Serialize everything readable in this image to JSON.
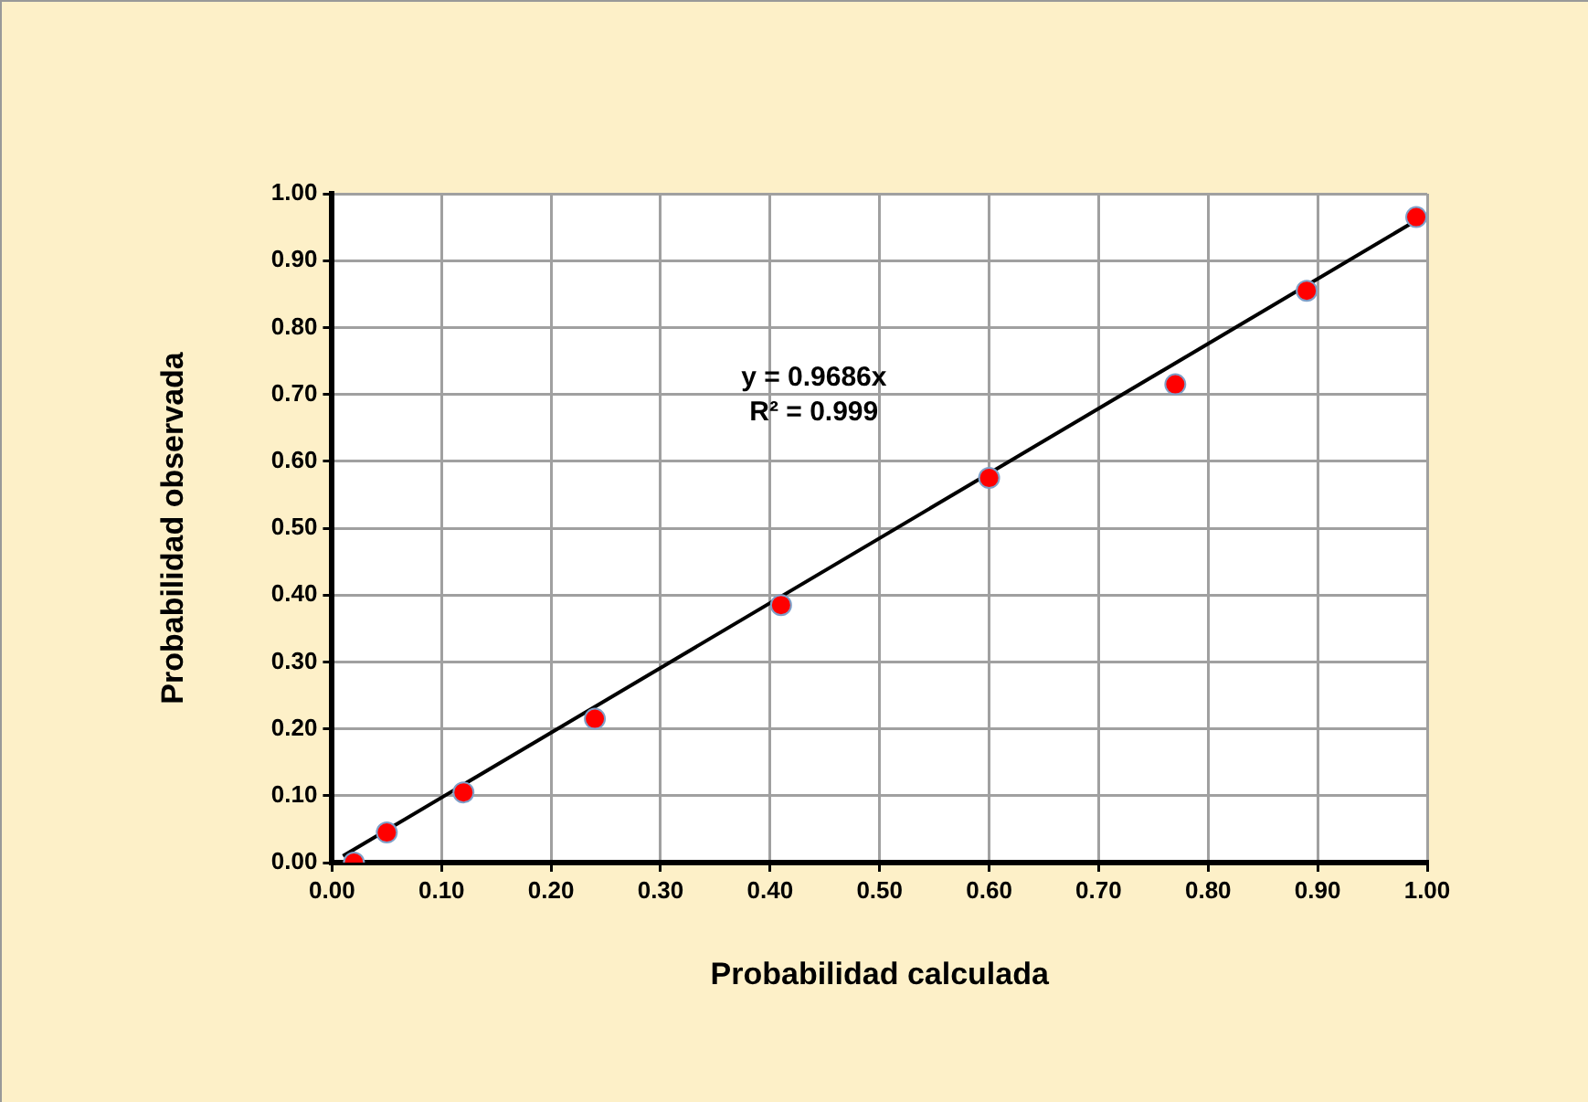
{
  "chart_data": {
    "type": "scatter",
    "xlabel": "Probabilidad calculada",
    "ylabel": "Probabilidad observada",
    "annotations": [
      "y = 0.9686x",
      "R² = 0.999"
    ],
    "series": [
      {
        "marker": "circle",
        "color": "#ff0000",
        "x": [
          0.02,
          0.05,
          0.12,
          0.24,
          0.41,
          0.6,
          0.77,
          0.89,
          0.99
        ],
        "values": [
          0.0,
          0.045,
          0.105,
          0.215,
          0.385,
          0.575,
          0.715,
          0.855,
          0.965
        ]
      },
      {
        "type": "line",
        "marker": "none",
        "color": "#000000",
        "x": [
          0.01,
          0.99
        ],
        "values": [
          0.01,
          0.96
        ]
      }
    ],
    "xlim": [
      0,
      1
    ],
    "ylim": [
      0,
      1
    ],
    "xticks": [
      {
        "value": 0,
        "label": "0.00"
      },
      {
        "value": 0.1,
        "label": "0.10"
      },
      {
        "value": 0.2,
        "label": "0.20"
      },
      {
        "value": 0.3,
        "label": "0.30"
      },
      {
        "value": 0.4,
        "label": "0.40"
      },
      {
        "value": 0.5,
        "label": "0.50"
      },
      {
        "value": 0.6,
        "label": "0.60"
      },
      {
        "value": 0.7,
        "label": "0.70"
      },
      {
        "value": 0.8,
        "label": "0.80"
      },
      {
        "value": 0.9,
        "label": "0.90"
      },
      {
        "value": 1,
        "label": "1.00"
      }
    ],
    "yticks": [
      {
        "value": 0,
        "label": "0.00"
      },
      {
        "value": 0.1,
        "label": "0.10"
      },
      {
        "value": 0.2,
        "label": "0.20"
      },
      {
        "value": 0.3,
        "label": "0.30"
      },
      {
        "value": 0.4,
        "label": "0.40"
      },
      {
        "value": 0.5,
        "label": "0.50"
      },
      {
        "value": 0.6,
        "label": "0.60"
      },
      {
        "value": 0.7,
        "label": "0.70"
      },
      {
        "value": 0.8,
        "label": "0.80"
      },
      {
        "value": 0.9,
        "label": "0.90"
      },
      {
        "value": 1,
        "label": "1.00"
      }
    ],
    "grid": true,
    "legend": false
  }
}
